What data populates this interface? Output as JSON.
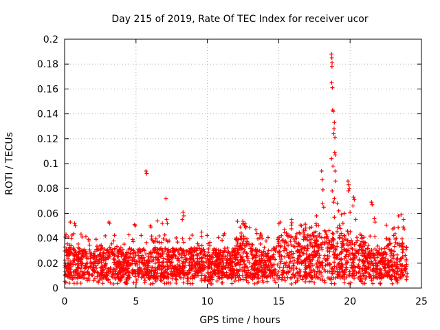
{
  "chart_data": {
    "type": "scatter",
    "title": "Day 215 of 2019, Rate Of TEC Index for receiver ucor",
    "xlabel": "GPS time / hours",
    "ylabel": "ROTI / TECUs",
    "xlim": [
      0,
      25
    ],
    "ylim": [
      0,
      0.2
    ],
    "x_ticks": [
      0,
      5,
      10,
      15,
      20,
      25
    ],
    "x_tick_labels": [
      "0",
      "5",
      "10",
      "15",
      "20",
      "25"
    ],
    "y_ticks": [
      0,
      0.02,
      0.04,
      0.06,
      0.08,
      0.1,
      0.12,
      0.14,
      0.16,
      0.18,
      0.2
    ],
    "y_tick_labels": [
      "0",
      "0.02",
      "0.04",
      "0.06",
      "0.08",
      "0.1",
      "0.12",
      "0.14",
      "0.16",
      "0.18",
      "0.2"
    ],
    "grid": true,
    "marker": "+",
    "marker_color": "#ff0000",
    "series": [
      {
        "name": "ROTI",
        "background_band": {
          "x_range": [
            0,
            24
          ],
          "typical_min": 0.008,
          "typical_max": 0.032,
          "approx_point_count": 2600
        },
        "highlight_points": [
          {
            "x": 5.7,
            "y": 0.094
          },
          {
            "x": 5.75,
            "y": 0.092
          },
          {
            "x": 7.1,
            "y": 0.072
          },
          {
            "x": 8.3,
            "y": 0.061
          },
          {
            "x": 8.35,
            "y": 0.058
          },
          {
            "x": 0.1,
            "y": 0.043
          },
          {
            "x": 0.25,
            "y": 0.041
          },
          {
            "x": 0.4,
            "y": 0.053
          },
          {
            "x": 0.7,
            "y": 0.052
          },
          {
            "x": 0.75,
            "y": 0.05
          },
          {
            "x": 3.1,
            "y": 0.053
          },
          {
            "x": 3.15,
            "y": 0.052
          },
          {
            "x": 4.9,
            "y": 0.051
          },
          {
            "x": 4.95,
            "y": 0.05
          },
          {
            "x": 6.0,
            "y": 0.05
          },
          {
            "x": 6.05,
            "y": 0.049
          },
          {
            "x": 6.5,
            "y": 0.054
          },
          {
            "x": 6.85,
            "y": 0.052
          },
          {
            "x": 7.15,
            "y": 0.055
          },
          {
            "x": 7.2,
            "y": 0.052
          },
          {
            "x": 8.25,
            "y": 0.055
          },
          {
            "x": 9.6,
            "y": 0.045
          },
          {
            "x": 12.3,
            "y": 0.049
          },
          {
            "x": 12.6,
            "y": 0.05
          },
          {
            "x": 13.4,
            "y": 0.047
          },
          {
            "x": 15.1,
            "y": 0.053
          },
          {
            "x": 15.4,
            "y": 0.047
          },
          {
            "x": 15.9,
            "y": 0.055
          },
          {
            "x": 16.6,
            "y": 0.05
          },
          {
            "x": 17.3,
            "y": 0.049
          },
          {
            "x": 17.65,
            "y": 0.058
          },
          {
            "x": 18.0,
            "y": 0.094
          },
          {
            "x": 18.05,
            "y": 0.087
          },
          {
            "x": 18.1,
            "y": 0.079
          },
          {
            "x": 18.08,
            "y": 0.068
          },
          {
            "x": 18.15,
            "y": 0.065
          },
          {
            "x": 18.7,
            "y": 0.188
          },
          {
            "x": 18.72,
            "y": 0.185
          },
          {
            "x": 18.74,
            "y": 0.181
          },
          {
            "x": 18.73,
            "y": 0.178
          },
          {
            "x": 18.71,
            "y": 0.165
          },
          {
            "x": 18.76,
            "y": 0.161
          },
          {
            "x": 18.78,
            "y": 0.143
          },
          {
            "x": 18.82,
            "y": 0.142
          },
          {
            "x": 18.9,
            "y": 0.133
          },
          {
            "x": 18.88,
            "y": 0.128
          },
          {
            "x": 18.85,
            "y": 0.124
          },
          {
            "x": 18.94,
            "y": 0.121
          },
          {
            "x": 18.92,
            "y": 0.109
          },
          {
            "x": 18.96,
            "y": 0.107
          },
          {
            "x": 18.7,
            "y": 0.104
          },
          {
            "x": 18.8,
            "y": 0.098
          },
          {
            "x": 18.95,
            "y": 0.094
          },
          {
            "x": 18.98,
            "y": 0.086
          },
          {
            "x": 18.75,
            "y": 0.078
          },
          {
            "x": 18.9,
            "y": 0.072
          },
          {
            "x": 18.85,
            "y": 0.069
          },
          {
            "x": 19.1,
            "y": 0.068
          },
          {
            "x": 19.2,
            "y": 0.062
          },
          {
            "x": 19.4,
            "y": 0.059
          },
          {
            "x": 19.6,
            "y": 0.06
          },
          {
            "x": 19.85,
            "y": 0.086
          },
          {
            "x": 19.9,
            "y": 0.083
          },
          {
            "x": 19.95,
            "y": 0.08
          },
          {
            "x": 19.88,
            "y": 0.078
          },
          {
            "x": 20.25,
            "y": 0.073
          },
          {
            "x": 20.3,
            "y": 0.071
          },
          {
            "x": 20.2,
            "y": 0.066
          },
          {
            "x": 20.0,
            "y": 0.061
          },
          {
            "x": 20.4,
            "y": 0.055
          },
          {
            "x": 21.5,
            "y": 0.069
          },
          {
            "x": 21.55,
            "y": 0.067
          },
          {
            "x": 21.7,
            "y": 0.056
          },
          {
            "x": 21.75,
            "y": 0.053
          },
          {
            "x": 23.4,
            "y": 0.058
          },
          {
            "x": 23.6,
            "y": 0.059
          },
          {
            "x": 23.75,
            "y": 0.055
          }
        ]
      }
    ]
  }
}
